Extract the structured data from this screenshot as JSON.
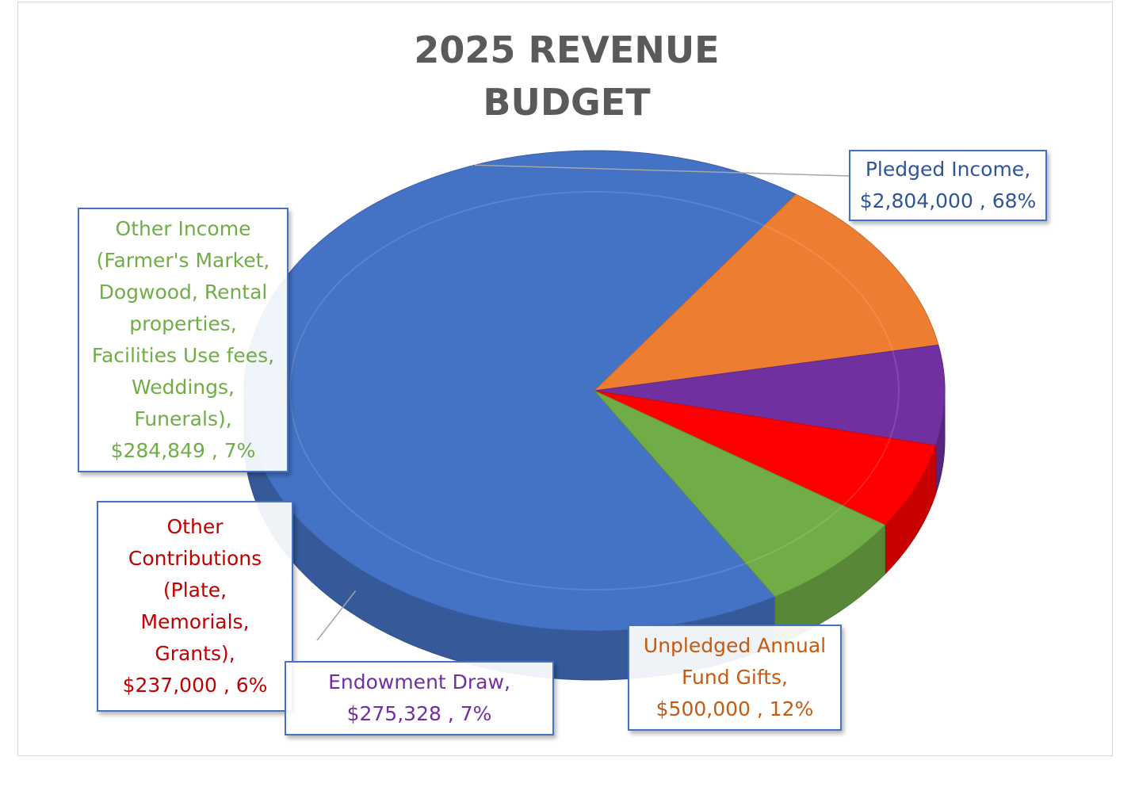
{
  "chart_data": {
    "type": "pie",
    "title": "2025 REVENUE BUDGET",
    "title_lines": [
      "2025 REVENUE",
      "BUDGET"
    ],
    "style": "3d",
    "slices": [
      {
        "id": "pledged",
        "lines": [
          "Pledged Income,",
          "$2,804,000 , 68%"
        ],
        "value": 2804000,
        "percent": 68,
        "color": "#4472c4"
      },
      {
        "id": "unpledged",
        "lines": [
          "Unpledged Annual",
          "Fund Gifts,",
          "$500,000 , 12%"
        ],
        "value": 500000,
        "percent": 12,
        "color": "#ed7d31"
      },
      {
        "id": "endowment",
        "lines": [
          "Endowment Draw,",
          "$275,328 , 7%"
        ],
        "value": 275328,
        "percent": 7,
        "color": "#7030a0"
      },
      {
        "id": "contributions",
        "lines": [
          "Other",
          "Contributions",
          "(Plate,",
          "Memorials,",
          "Grants),",
          "$237,000 , 6%"
        ],
        "value": 237000,
        "percent": 6,
        "color": "#ff0000"
      },
      {
        "id": "other-income",
        "lines": [
          "Other Income",
          "(Farmer's Market,",
          "Dogwood, Rental",
          "properties,",
          "Facilities Use fees,",
          "Weddings,",
          "Funerals),",
          "$284,849 , 7%"
        ],
        "value": 284849,
        "percent": 7,
        "color": "#70ad47"
      }
    ],
    "label_colors": {
      "pledged": "#2f5597",
      "unpledged": "#c55a11",
      "endowment": "#7030a0",
      "contributions": "#c00000",
      "other-income": "#70ad47"
    }
  }
}
